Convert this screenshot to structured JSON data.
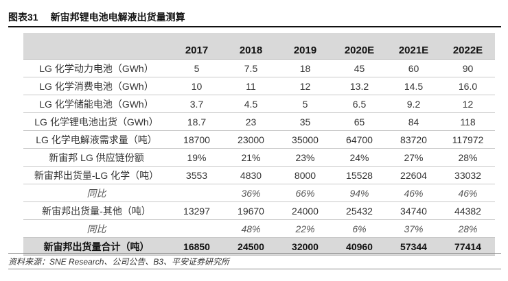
{
  "figure": {
    "number": "图表31",
    "title": "新宙邦锂电池电解液出货量测算"
  },
  "table": {
    "columns": [
      "2017",
      "2018",
      "2019",
      "2020E",
      "2021E",
      "2022E"
    ],
    "rows": [
      {
        "label": "LG 化学动力电池（GWh）",
        "values": [
          "5",
          "7.5",
          "18",
          "45",
          "60",
          "90"
        ],
        "style": "normal"
      },
      {
        "label": "LG 化学消费电池（GWh）",
        "values": [
          "10",
          "11",
          "12",
          "13.2",
          "14.5",
          "16.0"
        ],
        "style": "normal"
      },
      {
        "label": "LG 化学储能电池（GWh）",
        "values": [
          "3.7",
          "4.5",
          "5",
          "6.5",
          "9.2",
          "12"
        ],
        "style": "normal"
      },
      {
        "label": "LG 化学锂电池出货（GWh）",
        "values": [
          "18.7",
          "23",
          "35",
          "65",
          "84",
          "118"
        ],
        "style": "normal"
      },
      {
        "label": "LG 化学电解液需求量（吨）",
        "values": [
          "18700",
          "23000",
          "35000",
          "64700",
          "83720",
          "117972"
        ],
        "style": "normal"
      },
      {
        "label": "新宙邦 LG 供应链份额",
        "values": [
          "19%",
          "21%",
          "23%",
          "24%",
          "27%",
          "28%"
        ],
        "style": "normal"
      },
      {
        "label": "新宙邦出货量-LG 化学（吨）",
        "values": [
          "3553",
          "4830",
          "8000",
          "15528",
          "22604",
          "33032"
        ],
        "style": "normal"
      },
      {
        "label": "同比",
        "values": [
          "",
          "36%",
          "66%",
          "94%",
          "46%",
          "46%"
        ],
        "style": "yoy"
      },
      {
        "label": "新宙邦出货量-其他（吨）",
        "values": [
          "13297",
          "19670",
          "24000",
          "25432",
          "34740",
          "44382"
        ],
        "style": "normal"
      },
      {
        "label": "同比",
        "values": [
          "",
          "48%",
          "22%",
          "6%",
          "37%",
          "28%"
        ],
        "style": "yoy"
      },
      {
        "label": "新宙邦出货量合计（吨）",
        "values": [
          "16850",
          "24500",
          "32000",
          "40960",
          "57344",
          "77414"
        ],
        "style": "total"
      }
    ]
  },
  "source": "资料来源：SNE Research、公司公告、B3、平安证券研究所"
}
